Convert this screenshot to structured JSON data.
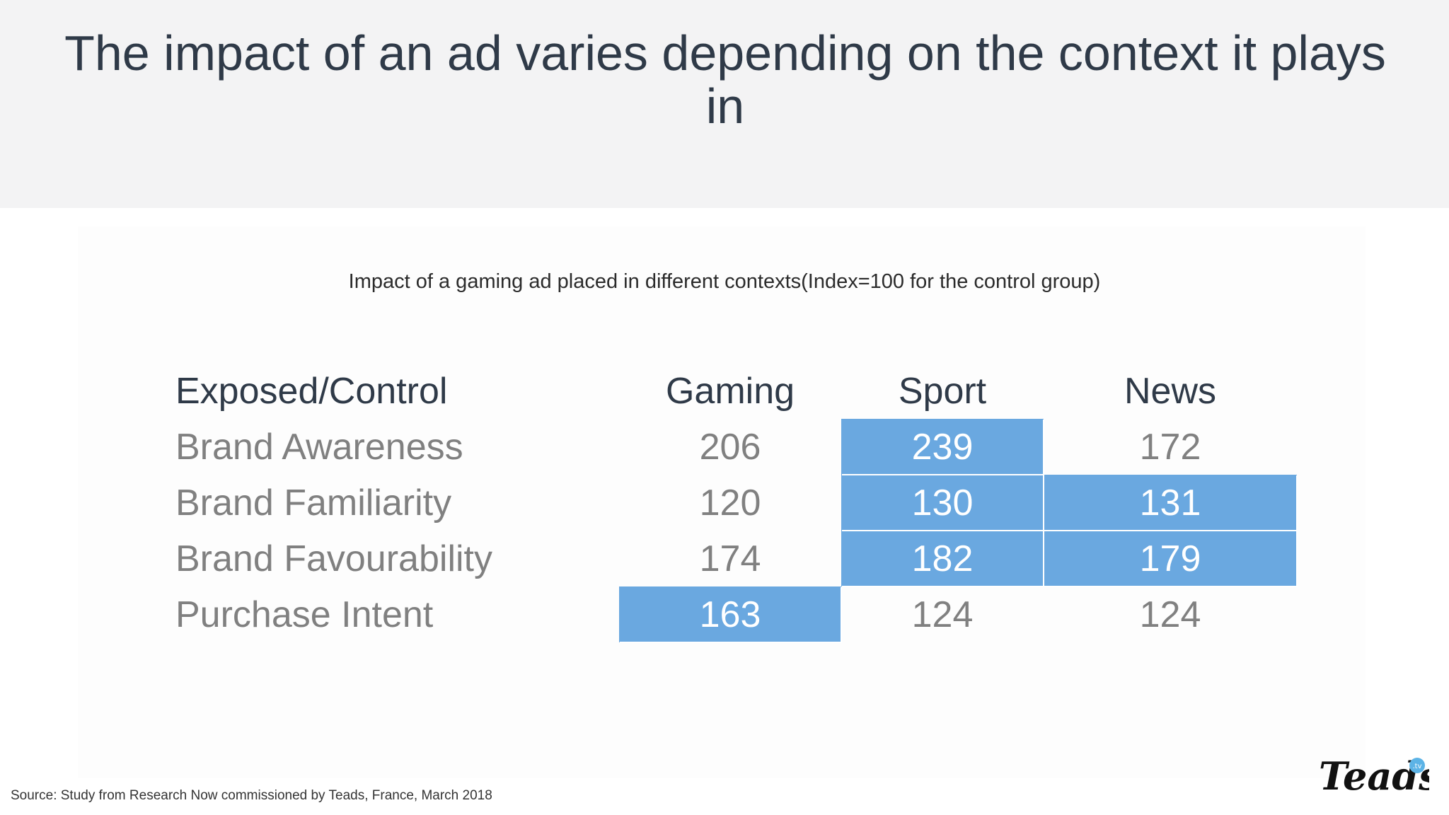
{
  "title": "The impact of an ad varies depending on the context it plays in",
  "chart_data": {
    "type": "table",
    "title": "Impact of a gaming ad placed in different contexts(Index=100 for the control group)",
    "header": [
      "Exposed/Control",
      "Gaming",
      "Sport",
      "News"
    ],
    "rows": [
      {
        "label": "Brand Awareness",
        "values": [
          "206",
          "239",
          "172"
        ],
        "highlight": [
          false,
          true,
          false
        ]
      },
      {
        "label": "Brand Familiarity",
        "values": [
          "120",
          "130",
          "131"
        ],
        "highlight": [
          false,
          true,
          true
        ]
      },
      {
        "label": "Brand Favourability",
        "values": [
          "174",
          "182",
          "179"
        ],
        "highlight": [
          false,
          true,
          true
        ]
      },
      {
        "label": "Purchase Intent",
        "values": [
          "163",
          "124",
          "124"
        ],
        "highlight": [
          true,
          false,
          false
        ]
      }
    ],
    "highlight_color": "#6aa8e0"
  },
  "source": "Source: Study from Research Now commissioned by Teads, France, March 2018",
  "logo": {
    "text": "Teads",
    "badge": ".tv",
    "icon": "teads-logo"
  },
  "colors": {
    "header_bg": "#f3f3f4",
    "title": "#2f3a48",
    "label_text": "#808080",
    "highlight": "#6aa8e0"
  }
}
